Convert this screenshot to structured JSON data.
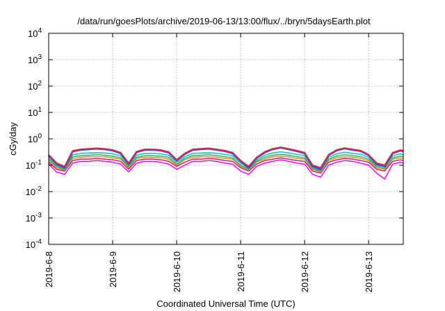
{
  "chart_data": {
    "type": "line",
    "title": "/data/run/goesPlots/archive/2019-06-13/13:00/flux/../bryn/5daysEarth.plot",
    "xlabel": "Coordinated Universal Time (UTC)",
    "ylabel": "cGy/day",
    "yscale": "log",
    "ylim": [
      0.0001,
      10000
    ],
    "xlim": [
      "2019-06-08T00:00",
      "2019-06-13T13:00"
    ],
    "grid": true,
    "y_ticks": [
      {
        "base": "10",
        "exp": "-4",
        "value": 0.0001
      },
      {
        "base": "10",
        "exp": "-3",
        "value": 0.001
      },
      {
        "base": "10",
        "exp": "-2",
        "value": 0.01
      },
      {
        "base": "10",
        "exp": "-1",
        "value": 0.1
      },
      {
        "base": "10",
        "exp": "0",
        "value": 1
      },
      {
        "base": "10",
        "exp": "1",
        "value": 10
      },
      {
        "base": "10",
        "exp": "2",
        "value": 100
      },
      {
        "base": "10",
        "exp": "3",
        "value": 1000
      },
      {
        "base": "10",
        "exp": "4",
        "value": 10000
      }
    ],
    "x_ticks": [
      {
        "label": "2019-6-8",
        "value": "2019-06-08"
      },
      {
        "label": "2019-6-9",
        "value": "2019-06-09"
      },
      {
        "label": "2019-6-10",
        "value": "2019-06-10"
      },
      {
        "label": "2019-6-11",
        "value": "2019-06-11"
      },
      {
        "label": "2019-6-12",
        "value": "2019-06-12"
      },
      {
        "label": "2019-6-13",
        "value": "2019-06-13"
      }
    ],
    "x": [
      "2019-06-08T00:00",
      "2019-06-08T03:00",
      "2019-06-08T06:00",
      "2019-06-08T09:00",
      "2019-06-08T12:00",
      "2019-06-08T15:00",
      "2019-06-08T18:00",
      "2019-06-08T21:00",
      "2019-06-09T00:00",
      "2019-06-09T03:00",
      "2019-06-09T06:00",
      "2019-06-09T09:00",
      "2019-06-09T12:00",
      "2019-06-09T15:00",
      "2019-06-09T18:00",
      "2019-06-09T21:00",
      "2019-06-10T00:00",
      "2019-06-10T03:00",
      "2019-06-10T06:00",
      "2019-06-10T09:00",
      "2019-06-10T12:00",
      "2019-06-10T15:00",
      "2019-06-10T18:00",
      "2019-06-10T21:00",
      "2019-06-11T00:00",
      "2019-06-11T03:00",
      "2019-06-11T06:00",
      "2019-06-11T09:00",
      "2019-06-11T12:00",
      "2019-06-11T15:00",
      "2019-06-11T18:00",
      "2019-06-11T21:00",
      "2019-06-12T00:00",
      "2019-06-12T03:00",
      "2019-06-12T06:00",
      "2019-06-12T09:00",
      "2019-06-12T12:00",
      "2019-06-12T15:00",
      "2019-06-12T18:00",
      "2019-06-12T21:00",
      "2019-06-13T00:00",
      "2019-06-13T03:00",
      "2019-06-13T06:00",
      "2019-06-13T09:00",
      "2019-06-13T12:00",
      "2019-06-13T13:00"
    ],
    "series": [
      {
        "color": "#e8203c",
        "width": 2,
        "values": [
          0.25,
          0.12,
          0.09,
          0.35,
          0.4,
          0.42,
          0.44,
          0.42,
          0.38,
          0.3,
          0.12,
          0.33,
          0.4,
          0.4,
          0.38,
          0.32,
          0.16,
          0.28,
          0.4,
          0.42,
          0.44,
          0.4,
          0.36,
          0.3,
          0.15,
          0.09,
          0.2,
          0.32,
          0.42,
          0.48,
          0.42,
          0.36,
          0.3,
          0.1,
          0.08,
          0.25,
          0.38,
          0.45,
          0.4,
          0.36,
          0.25,
          0.12,
          0.1,
          0.3,
          0.38,
          0.35
        ]
      },
      {
        "color": "#2a52e8",
        "width": 2.5,
        "values": [
          0.24,
          0.11,
          0.08,
          0.33,
          0.38,
          0.4,
          0.42,
          0.4,
          0.36,
          0.28,
          0.11,
          0.31,
          0.38,
          0.38,
          0.36,
          0.3,
          0.15,
          0.26,
          0.38,
          0.4,
          0.42,
          0.38,
          0.34,
          0.28,
          0.14,
          0.08,
          0.19,
          0.3,
          0.4,
          0.46,
          0.4,
          0.34,
          0.28,
          0.09,
          0.07,
          0.24,
          0.36,
          0.43,
          0.38,
          0.34,
          0.24,
          0.11,
          0.09,
          0.28,
          0.36,
          0.33
        ]
      },
      {
        "color": "#00c0d8",
        "width": 1.5,
        "values": [
          0.2,
          0.1,
          0.075,
          0.25,
          0.28,
          0.29,
          0.3,
          0.29,
          0.27,
          0.23,
          0.1,
          0.24,
          0.28,
          0.28,
          0.27,
          0.24,
          0.13,
          0.21,
          0.28,
          0.29,
          0.3,
          0.28,
          0.26,
          0.23,
          0.12,
          0.075,
          0.16,
          0.24,
          0.29,
          0.32,
          0.29,
          0.26,
          0.23,
          0.085,
          0.065,
          0.2,
          0.27,
          0.31,
          0.28,
          0.26,
          0.2,
          0.1,
          0.085,
          0.23,
          0.27,
          0.25
        ]
      },
      {
        "color": "#30b050",
        "width": 1.5,
        "values": [
          0.17,
          0.09,
          0.07,
          0.21,
          0.23,
          0.24,
          0.25,
          0.24,
          0.22,
          0.19,
          0.09,
          0.2,
          0.23,
          0.23,
          0.22,
          0.2,
          0.11,
          0.18,
          0.23,
          0.24,
          0.25,
          0.23,
          0.21,
          0.19,
          0.1,
          0.07,
          0.14,
          0.2,
          0.24,
          0.26,
          0.24,
          0.21,
          0.19,
          0.075,
          0.06,
          0.17,
          0.22,
          0.25,
          0.23,
          0.21,
          0.17,
          0.09,
          0.075,
          0.19,
          0.22,
          0.21
        ]
      },
      {
        "color": "#e89020",
        "width": 1.5,
        "values": [
          0.15,
          0.08,
          0.065,
          0.18,
          0.2,
          0.21,
          0.21,
          0.21,
          0.19,
          0.17,
          0.08,
          0.18,
          0.2,
          0.2,
          0.19,
          0.17,
          0.1,
          0.16,
          0.2,
          0.21,
          0.21,
          0.2,
          0.18,
          0.17,
          0.09,
          0.065,
          0.13,
          0.17,
          0.21,
          0.22,
          0.21,
          0.18,
          0.17,
          0.07,
          0.055,
          0.15,
          0.19,
          0.21,
          0.2,
          0.18,
          0.15,
          0.08,
          0.07,
          0.17,
          0.19,
          0.18
        ]
      },
      {
        "color": "#c81e6e",
        "width": 1.5,
        "values": [
          0.13,
          0.07,
          0.06,
          0.15,
          0.17,
          0.17,
          0.18,
          0.17,
          0.16,
          0.14,
          0.07,
          0.15,
          0.17,
          0.17,
          0.16,
          0.14,
          0.09,
          0.13,
          0.17,
          0.17,
          0.18,
          0.17,
          0.15,
          0.14,
          0.08,
          0.06,
          0.11,
          0.15,
          0.17,
          0.19,
          0.17,
          0.15,
          0.14,
          0.06,
          0.05,
          0.13,
          0.16,
          0.18,
          0.17,
          0.15,
          0.13,
          0.07,
          0.06,
          0.14,
          0.16,
          0.15
        ]
      },
      {
        "color": "#ff00ff",
        "width": 1.5,
        "values": [
          0.11,
          0.055,
          0.045,
          0.12,
          0.14,
          0.14,
          0.15,
          0.14,
          0.13,
          0.11,
          0.055,
          0.12,
          0.14,
          0.14,
          0.13,
          0.11,
          0.07,
          0.1,
          0.14,
          0.14,
          0.15,
          0.14,
          0.12,
          0.11,
          0.06,
          0.045,
          0.09,
          0.12,
          0.14,
          0.16,
          0.14,
          0.12,
          0.11,
          0.045,
          0.035,
          0.1,
          0.13,
          0.15,
          0.14,
          0.12,
          0.1,
          0.05,
          0.03,
          0.11,
          0.13,
          0.12
        ]
      }
    ]
  }
}
